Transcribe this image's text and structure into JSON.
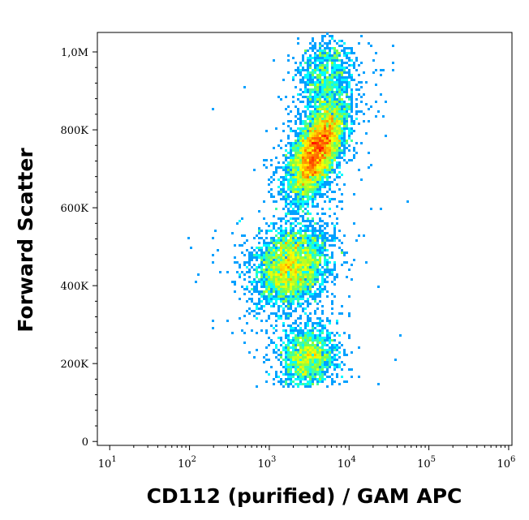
{
  "chart_data": {
    "type": "scatter",
    "subtype": "flow-cytometry-density-dot-plot",
    "xlabel": "CD112 (purified) / GAM APC",
    "ylabel": "Forward Scatter",
    "x_scale": "log",
    "xlim": [
      7,
      1100000
    ],
    "ylim": [
      -10000,
      1050000
    ],
    "x_ticks": [
      {
        "value": 10,
        "base": "10",
        "exp": "1"
      },
      {
        "value": 100,
        "base": "10",
        "exp": "2"
      },
      {
        "value": 1000,
        "base": "10",
        "exp": "3"
      },
      {
        "value": 10000,
        "base": "10",
        "exp": "4"
      },
      {
        "value": 100000,
        "base": "10",
        "exp": "5"
      },
      {
        "value": 1000000,
        "base": "10",
        "exp": "6"
      }
    ],
    "y_ticks": [
      {
        "value": 0,
        "label": "0"
      },
      {
        "value": 200000,
        "label": "200K"
      },
      {
        "value": 400000,
        "label": "400K"
      },
      {
        "value": 600000,
        "label": "600K"
      },
      {
        "value": 800000,
        "label": "800K"
      },
      {
        "value": 1000000,
        "label": "1,0M"
      }
    ],
    "populations": [
      {
        "center_x": 4000,
        "center_y": 750000,
        "spread_log_x": 0.17,
        "spread_y": 60000,
        "count": 5200,
        "correlation": 0.6
      },
      {
        "center_x": 1900,
        "center_y": 450000,
        "spread_log_x": 0.22,
        "spread_y": 50000,
        "count": 3200,
        "correlation": 0.2
      },
      {
        "center_x": 3000,
        "center_y": 215000,
        "spread_log_x": 0.18,
        "spread_y": 40000,
        "count": 1500,
        "correlation": 0.1
      },
      {
        "center_x": 5000,
        "center_y": 940000,
        "spread_log_x": 0.18,
        "spread_y": 55000,
        "count": 900,
        "correlation": 0.3
      }
    ],
    "y_floor": 140000,
    "y_ceiling": 1045000,
    "colormap": [
      "#0000ff",
      "#0080ff",
      "#00ffff",
      "#80ff40",
      "#ffff00",
      "#ff8000",
      "#ff0000"
    ],
    "grid": false,
    "legend": "none"
  }
}
